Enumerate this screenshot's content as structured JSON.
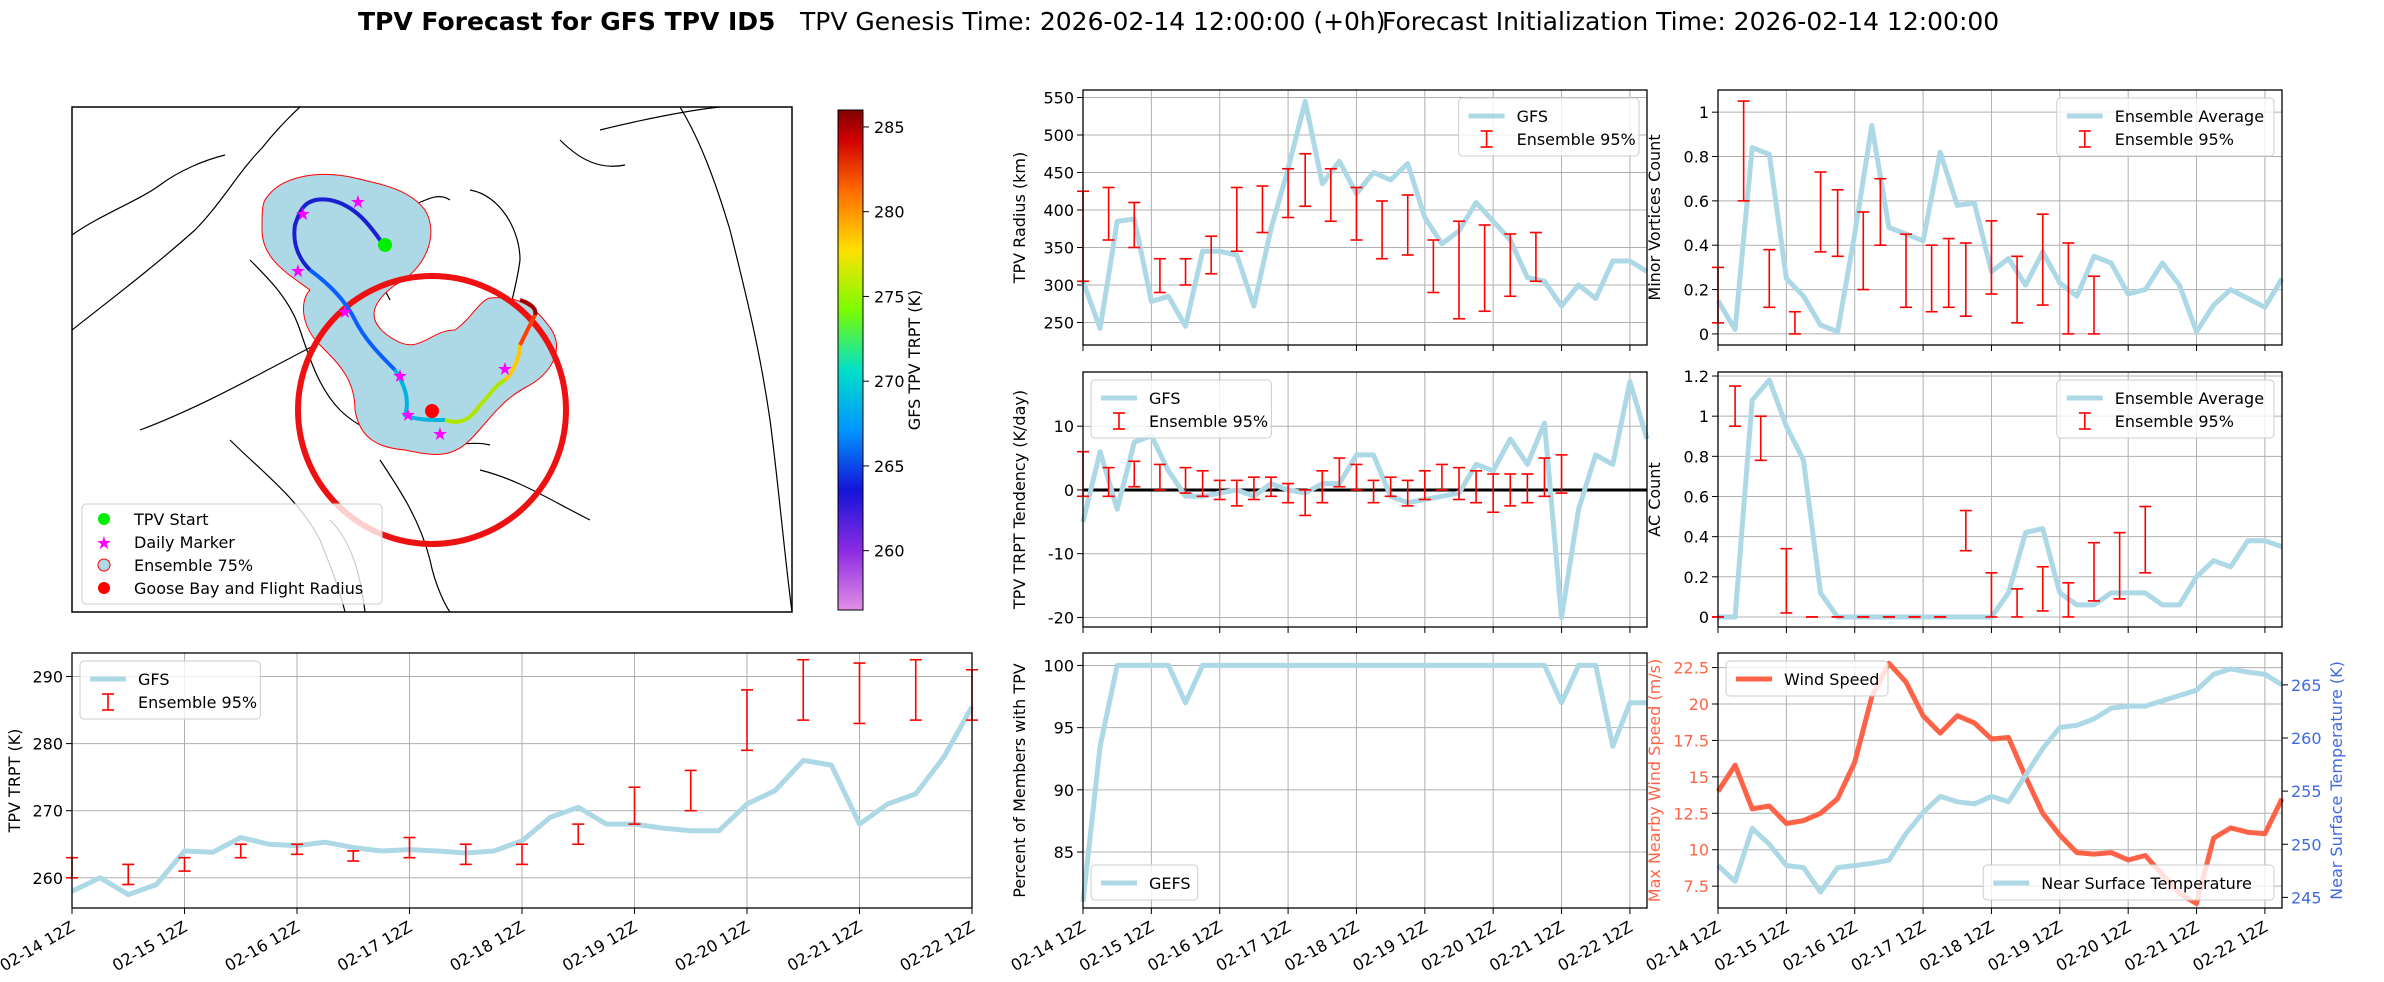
{
  "title": {
    "main": "TPV Forecast for GFS TPV ID5",
    "genesis": "TPV Genesis Time: 2026-02-14 12:00:00 (+0h)",
    "init": "Forecast Initialization Time: 2026-02-14 12:00:00"
  },
  "colors": {
    "lightblue": "#add8e6",
    "red": "#ff0000",
    "wind": "#ff6347",
    "temp_axis": "#4169e1",
    "green": "#00ee00",
    "magenta": "#ff00ff"
  },
  "map": {
    "legend": [
      "TPV Start",
      "Daily Marker",
      "Ensemble 75%",
      "Goose Bay and Flight Radius"
    ],
    "colorbar": {
      "label": "GFS TPV TRPT (K)",
      "min": 256.5,
      "max": 286,
      "ticks": [
        260,
        265,
        270,
        275,
        280,
        285
      ]
    }
  },
  "x_labels": [
    "02-14 12Z",
    "02-15 12Z",
    "02-16 12Z",
    "02-17 12Z",
    "02-18 12Z",
    "02-19 12Z",
    "02-20 12Z",
    "02-21 12Z",
    "02-22 12Z"
  ],
  "chart_data": [
    {
      "id": "radius",
      "type": "line",
      "ylabel": "TPV Radius (km)",
      "ylim": [
        220,
        560
      ],
      "yticks": [
        250,
        300,
        350,
        400,
        450,
        500,
        550
      ],
      "legend": [
        "GFS",
        "Ensemble 95%"
      ],
      "series": [
        {
          "name": "GFS",
          "values": [
            305,
            242,
            385,
            388,
            278,
            285,
            245,
            345,
            345,
            340,
            272,
            375,
            455,
            545,
            435,
            465,
            422,
            450,
            440,
            462,
            390,
            355,
            372,
            410,
            385,
            360,
            310,
            305,
            272,
            300,
            282,
            332,
            332,
            318
          ]
        }
      ],
      "errorbars": [
        [
          0,
          305,
          365,
          425
        ],
        [
          3,
          360,
          395,
          430
        ],
        [
          6,
          350,
          380,
          410
        ],
        [
          9,
          290,
          312,
          335
        ],
        [
          12,
          300,
          317,
          335
        ],
        [
          15,
          315,
          340,
          365
        ],
        [
          18,
          345,
          385,
          430
        ],
        [
          21,
          370,
          400,
          432
        ],
        [
          24,
          390,
          420,
          455
        ],
        [
          26,
          405,
          440,
          475
        ],
        [
          29,
          385,
          420,
          455
        ],
        [
          32,
          360,
          395,
          430
        ],
        [
          35,
          335,
          375,
          412
        ],
        [
          38,
          340,
          380,
          420
        ],
        [
          41,
          290,
          325,
          360
        ],
        [
          44,
          255,
          320,
          385
        ],
        [
          47,
          265,
          320,
          380
        ],
        [
          50,
          285,
          325,
          368
        ],
        [
          53,
          305,
          335,
          370
        ]
      ]
    },
    {
      "id": "tendency",
      "type": "line",
      "ylabel": "TPV TRPT Tendency (K/day)",
      "ylim": [
        -21.5,
        18.5
      ],
      "yticks": [
        -20,
        -10,
        0,
        10
      ],
      "legend": [
        "GFS",
        "Ensemble 95%"
      ],
      "series": [
        {
          "name": "GFS",
          "values": [
            -5,
            6,
            -3,
            7.5,
            8.5,
            3,
            -1,
            -1,
            -0.5,
            0,
            -1,
            1,
            0,
            -0.5,
            1,
            1,
            5.5,
            5.5,
            -1,
            -2,
            -1.5,
            -1,
            -0.5,
            4,
            3,
            8,
            4,
            10.5,
            -20,
            -3,
            5.5,
            4,
            17,
            8
          ]
        }
      ],
      "errorbars": [
        [
          0,
          -1,
          2.5,
          6
        ],
        [
          3,
          -1,
          1.2,
          3.5
        ],
        [
          6,
          0.5,
          2.5,
          4.5
        ],
        [
          9,
          0,
          2,
          4
        ],
        [
          12,
          -0.5,
          1.5,
          3.5
        ],
        [
          14,
          -1,
          1,
          3
        ],
        [
          16,
          -1.5,
          0,
          1.5
        ],
        [
          18,
          -2.5,
          -0.5,
          1.5
        ],
        [
          20,
          -1.5,
          0.3,
          2
        ],
        [
          22,
          -1,
          0.5,
          2
        ],
        [
          24,
          -2,
          -0.5,
          1
        ],
        [
          26,
          -4,
          -2,
          0
        ],
        [
          28,
          -2,
          0.5,
          3
        ],
        [
          30,
          0.5,
          2.5,
          5
        ],
        [
          32,
          0,
          2,
          4
        ],
        [
          34,
          -2,
          -0.5,
          1.5
        ],
        [
          36,
          -1,
          0.5,
          2
        ],
        [
          38,
          -2.5,
          -0.5,
          1.5
        ],
        [
          40,
          -1.5,
          1,
          3
        ],
        [
          42,
          0,
          2,
          4
        ],
        [
          44,
          -1.5,
          1,
          3.5
        ],
        [
          46,
          -2,
          0.5,
          3
        ],
        [
          48,
          -3.5,
          -0.5,
          2.5
        ],
        [
          50,
          -2.5,
          0,
          2.5
        ],
        [
          52,
          -2,
          0.5,
          2.5
        ],
        [
          54,
          -1,
          2,
          5
        ],
        [
          56,
          -0.5,
          2.5,
          5.5
        ]
      ]
    },
    {
      "id": "percent",
      "type": "line",
      "ylabel": "Percent of Members with TPV",
      "ylim": [
        80.5,
        101
      ],
      "yticks": [
        85,
        90,
        95,
        100
      ],
      "legend": [
        "GEFS"
      ],
      "series": [
        {
          "name": "GEFS",
          "values": [
            81,
            93.5,
            100,
            100,
            100,
            100,
            97,
            100,
            100,
            100,
            100,
            100,
            100,
            100,
            100,
            100,
            100,
            100,
            100,
            100,
            100,
            100,
            100,
            100,
            100,
            100,
            100,
            100,
            97,
            100,
            100,
            93.5,
            97,
            97
          ]
        }
      ]
    },
    {
      "id": "minor",
      "type": "line",
      "ylabel": "Minor Vortices Count",
      "ylim": [
        -0.05,
        1.1
      ],
      "yticks": [
        0.0,
        0.2,
        0.4,
        0.6,
        0.8,
        1.0
      ],
      "legend": [
        "Ensemble Average",
        "Ensemble 95%"
      ],
      "series": [
        {
          "name": "Ensemble Average",
          "values": [
            0.15,
            0.02,
            0.84,
            0.81,
            0.25,
            0.17,
            0.04,
            0.01,
            0.45,
            0.94,
            0.48,
            0.45,
            0.42,
            0.82,
            0.58,
            0.59,
            0.28,
            0.34,
            0.22,
            0.37,
            0.23,
            0.17,
            0.35,
            0.32,
            0.18,
            0.2,
            0.32,
            0.22,
            0.01,
            0.13,
            0.2,
            0.16,
            0.12,
            0.25
          ]
        }
      ],
      "errorbars": [
        [
          0,
          0.05,
          0.15,
          0.3
        ],
        [
          3,
          0.6,
          0.82,
          1.05
        ],
        [
          6,
          0.12,
          0.25,
          0.38
        ],
        [
          9,
          0.0,
          0.05,
          0.1
        ],
        [
          12,
          0.37,
          0.55,
          0.73
        ],
        [
          14,
          0.35,
          0.5,
          0.65
        ],
        [
          17,
          0.2,
          0.38,
          0.55
        ],
        [
          19,
          0.4,
          0.55,
          0.7
        ],
        [
          22,
          0.12,
          0.28,
          0.45
        ],
        [
          25,
          0.1,
          0.25,
          0.4
        ],
        [
          27,
          0.12,
          0.28,
          0.43
        ],
        [
          29,
          0.08,
          0.25,
          0.41
        ],
        [
          32,
          0.18,
          0.35,
          0.51
        ],
        [
          35,
          0.05,
          0.2,
          0.35
        ],
        [
          38,
          0.13,
          0.33,
          0.54
        ],
        [
          41,
          0.0,
          0.2,
          0.41
        ],
        [
          44,
          0.0,
          0.12,
          0.26
        ]
      ]
    },
    {
      "id": "ac",
      "type": "line",
      "ylabel": "AC Count",
      "ylim": [
        -0.05,
        1.22
      ],
      "yticks": [
        0.0,
        0.2,
        0.4,
        0.6,
        0.8,
        1.0,
        1.2
      ],
      "legend": [
        "Ensemble Average",
        "Ensemble 95%"
      ],
      "series": [
        {
          "name": "Ensemble Average",
          "values": [
            0.0,
            0.0,
            1.08,
            1.18,
            0.95,
            0.78,
            0.12,
            0.0,
            0.0,
            0.0,
            0.0,
            0.0,
            0.0,
            0.0,
            0.0,
            0.0,
            0.0,
            0.12,
            0.42,
            0.44,
            0.12,
            0.06,
            0.06,
            0.12,
            0.12,
            0.12,
            0.06,
            0.06,
            0.2,
            0.28,
            0.25,
            0.38,
            0.38,
            0.35
          ]
        }
      ],
      "errorbars": [
        [
          0,
          0.0,
          0.0,
          0.0
        ],
        [
          2,
          0.95,
          1.05,
          1.15
        ],
        [
          5,
          0.78,
          0.88,
          1.0
        ],
        [
          8,
          0.02,
          0.15,
          0.34
        ],
        [
          11,
          0.0,
          0.0,
          0.0
        ],
        [
          14,
          0.0,
          0.0,
          0.0
        ],
        [
          17,
          0.0,
          0.0,
          0.0
        ],
        [
          20,
          0.0,
          0.0,
          0.0
        ],
        [
          23,
          0.0,
          0.0,
          0.0
        ],
        [
          26,
          0.0,
          0.0,
          0.0
        ],
        [
          29,
          0.33,
          0.43,
          0.53
        ],
        [
          32,
          0.0,
          0.1,
          0.22
        ],
        [
          35,
          0.0,
          0.05,
          0.14
        ],
        [
          38,
          0.03,
          0.12,
          0.25
        ],
        [
          41,
          0.0,
          0.06,
          0.17
        ],
        [
          44,
          0.08,
          0.2,
          0.37
        ],
        [
          47,
          0.09,
          0.25,
          0.42
        ],
        [
          50,
          0.22,
          0.38,
          0.55
        ]
      ]
    },
    {
      "id": "trpt",
      "type": "line",
      "ylabel": "TPV TRPT (K)",
      "ylim": [
        255.5,
        293.5
      ],
      "yticks": [
        260,
        270,
        280,
        290
      ],
      "legend": [
        "GFS",
        "Ensemble 95%"
      ],
      "series": [
        {
          "name": "GFS",
          "values": [
            258,
            260,
            257.5,
            259,
            264,
            263.8,
            266,
            265,
            264.8,
            265.3,
            264.5,
            264,
            264.2,
            264,
            263.7,
            264,
            265.5,
            269,
            270.5,
            268,
            268,
            267.4,
            267,
            267,
            271,
            273,
            277.5,
            276.8,
            268,
            271,
            272.5,
            278,
            285.5
          ]
        }
      ],
      "errorbars": [
        [
          0,
          260,
          261,
          263
        ],
        [
          5,
          259,
          260,
          262
        ],
        [
          10,
          261,
          262,
          263
        ],
        [
          15,
          263,
          264,
          265
        ],
        [
          20,
          263.5,
          264.3,
          265
        ],
        [
          25,
          262.5,
          263.4,
          264
        ],
        [
          30,
          263,
          264,
          266
        ],
        [
          35,
          262,
          263.5,
          265
        ],
        [
          40,
          262,
          263.5,
          265
        ],
        [
          45,
          265,
          267,
          268
        ],
        [
          50,
          268,
          270,
          273.5
        ],
        [
          55,
          270,
          272,
          276
        ],
        [
          60,
          279,
          283,
          288
        ],
        [
          65,
          283.5,
          287,
          292.5
        ],
        [
          70,
          283,
          287.5,
          292
        ],
        [
          75,
          283.5,
          288,
          292.5
        ],
        [
          80,
          283.5,
          287,
          291
        ]
      ]
    },
    {
      "id": "wind",
      "type": "line",
      "ylabel": "Max Nearby Wind Speed (m/s)",
      "ylabel_right": "Near Surface Temperature (K)",
      "ylim": [
        6,
        23.5
      ],
      "yticks": [
        7.5,
        10.0,
        12.5,
        15.0,
        17.5,
        20.0,
        22.5
      ],
      "ylim_right": [
        244,
        268
      ],
      "yticks_right": [
        245,
        250,
        255,
        260,
        265
      ],
      "legend": [
        "Wind Speed"
      ],
      "legend_right": [
        "Near Surface Temperature"
      ],
      "series": [
        {
          "name": "Wind Speed",
          "values": [
            14,
            15.8,
            12.8,
            13,
            11.8,
            12,
            12.5,
            13.5,
            16,
            20.5,
            22.8,
            21.5,
            19.2,
            18,
            19.2,
            18.7,
            17.6,
            17.7,
            15,
            12.5,
            11,
            9.8,
            9.7,
            9.8,
            9.3,
            9.6,
            8.3,
            7,
            6.3,
            10.8,
            11.5,
            11.2,
            11.1,
            13.5
          ]
        },
        {
          "name": "Near Surface Temperature",
          "values": [
            248,
            246.5,
            251.5,
            250,
            248,
            247.8,
            245.5,
            247.8,
            248,
            248.2,
            248.5,
            251,
            253,
            254.5,
            254,
            253.8,
            254.5,
            254,
            256.5,
            259,
            261,
            261.2,
            261.8,
            262.8,
            263,
            263,
            263.5,
            264,
            264.5,
            266,
            266.5,
            266.2,
            266,
            265
          ]
        }
      ]
    }
  ]
}
